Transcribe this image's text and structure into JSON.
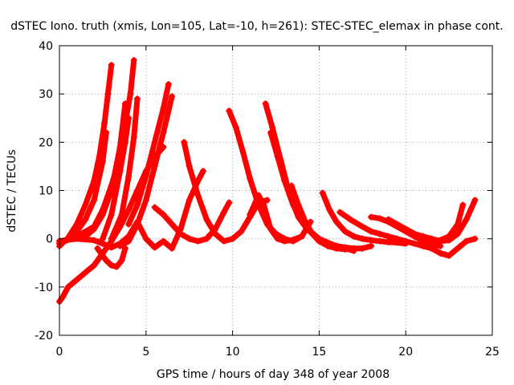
{
  "chart_data": {
    "type": "scatter",
    "title": "dSTEC Iono. truth (xmis, Lon=105, Lat=-10, h=261): STEC-STEC_elemax in phase cont.",
    "xlabel": "GPS time / hours of day 348 of year 2008",
    "ylabel": "dSTEC  / TECUs",
    "xlim": [
      0,
      25
    ],
    "ylim": [
      -20,
      40
    ],
    "xticks": [
      0,
      5,
      10,
      15,
      20,
      25
    ],
    "yticks": [
      -20,
      -10,
      0,
      10,
      20,
      30,
      40
    ],
    "grid": true,
    "marker": "plus",
    "color": "#ff0000",
    "series": [
      {
        "x": [
          0.0,
          0.5,
          1.0,
          1.5,
          2.0,
          2.3,
          2.6,
          2.8,
          3.0
        ],
        "y": [
          -1.5,
          0.2,
          3.0,
          7.0,
          12.0,
          17.0,
          24.0,
          30.0,
          36.0
        ]
      },
      {
        "x": [
          0.0,
          0.5,
          1.0,
          1.5,
          2.0,
          2.5,
          2.7
        ],
        "y": [
          -1.0,
          0.0,
          1.5,
          4.0,
          8.0,
          16.0,
          22.0
        ]
      },
      {
        "x": [
          0.0,
          0.8,
          1.5,
          2.0,
          2.5,
          3.0,
          3.5,
          3.8
        ],
        "y": [
          -0.5,
          0.0,
          0.5,
          2.0,
          5.0,
          10.0,
          19.0,
          28.0
        ]
      },
      {
        "x": [
          0.3,
          1.0,
          2.0,
          2.5,
          3.0,
          3.5,
          3.8,
          4.1,
          4.3
        ],
        "y": [
          -0.5,
          0.5,
          2.5,
          6.0,
          11.0,
          17.0,
          24.0,
          30.0,
          37.0
        ]
      },
      {
        "x": [
          2.5,
          3.0,
          3.5,
          3.8,
          4.0
        ],
        "y": [
          0.0,
          5.0,
          14.0,
          20.0,
          25.0
        ]
      },
      {
        "x": [
          3.5,
          4.0,
          4.5,
          5.0,
          5.5,
          6.0,
          6.5
        ],
        "y": [
          -1.5,
          -0.5,
          3.0,
          8.0,
          15.0,
          22.0,
          29.5
        ]
      },
      {
        "x": [
          4.0,
          4.5,
          5.0,
          5.5,
          6.0,
          6.3
        ],
        "y": [
          3.0,
          7.0,
          13.0,
          20.0,
          27.0,
          32.0
        ]
      },
      {
        "x": [
          3.0,
          3.6,
          4.0,
          4.3,
          4.5
        ],
        "y": [
          0.0,
          5.0,
          13.0,
          21.0,
          29.0
        ]
      },
      {
        "x": [
          0.0,
          0.2,
          0.5,
          1.0,
          1.5,
          2.0,
          2.5,
          3.0,
          3.5,
          4.0,
          4.5,
          5.0,
          5.5,
          6.0
        ],
        "y": [
          -13.0,
          -12.0,
          -10.0,
          -8.5,
          -7.0,
          -5.5,
          -3.0,
          -0.5,
          2.5,
          6.0,
          10.0,
          14.0,
          17.0,
          19.0
        ]
      },
      {
        "x": [
          0.0,
          1.0,
          2.0,
          2.5,
          3.0,
          3.5,
          4.0,
          4.5,
          5.0,
          5.5,
          6.0,
          6.5,
          7.0,
          7.5,
          8.0,
          8.3
        ],
        "y": [
          -0.5,
          0.0,
          -0.3,
          -1.0,
          -1.8,
          -1.0,
          0.5,
          3.5,
          0.0,
          -1.8,
          -0.5,
          -2.0,
          2.0,
          8.0,
          12.0,
          14.0
        ]
      },
      {
        "x": [
          2.2,
          2.7,
          3.0,
          3.3,
          3.6,
          3.8
        ],
        "y": [
          -2.0,
          -4.5,
          -5.5,
          -5.8,
          -4.5,
          -2.0
        ]
      },
      {
        "x": [
          5.5,
          6.0,
          6.5,
          7.0,
          7.5,
          8.0,
          8.5,
          9.0,
          9.5,
          9.8
        ],
        "y": [
          6.5,
          5.0,
          3.0,
          1.0,
          0.0,
          -0.5,
          0.0,
          2.0,
          5.5,
          7.5
        ]
      },
      {
        "x": [
          7.2,
          7.5,
          8.0,
          8.5,
          9.0,
          9.5,
          10.0,
          10.5,
          11.0,
          11.5,
          12.0
        ],
        "y": [
          20.0,
          15.0,
          9.0,
          4.0,
          1.0,
          -0.5,
          0.0,
          1.5,
          4.5,
          7.5,
          8.0
        ]
      },
      {
        "x": [
          9.8,
          10.2,
          10.6,
          11.0,
          11.5,
          12.0,
          12.5,
          13.0,
          13.5,
          14.0,
          14.5
        ],
        "y": [
          26.5,
          23.0,
          18.0,
          12.5,
          7.0,
          3.0,
          1.0,
          0.0,
          -0.5,
          0.5,
          3.5
        ]
      },
      {
        "x": [
          11.0,
          11.5,
          11.8,
          12.2,
          12.6,
          13.0,
          13.5,
          14.0
        ],
        "y": [
          5.0,
          9.0,
          7.0,
          2.0,
          0.0,
          -0.5,
          -0.2,
          0.5
        ]
      },
      {
        "x": [
          11.9,
          12.3,
          12.8,
          13.3,
          13.8,
          14.3,
          14.8,
          15.3,
          16.0,
          16.5,
          17.0
        ],
        "y": [
          28.0,
          23.0,
          16.0,
          9.0,
          4.5,
          2.0,
          0.5,
          -1.0,
          -1.5,
          -2.0,
          -2.5
        ]
      },
      {
        "x": [
          12.2,
          12.6,
          13.0,
          13.5,
          14.0,
          14.5,
          15.0,
          15.5,
          16.0,
          16.5,
          17.0,
          17.5,
          18.0
        ],
        "y": [
          22.0,
          17.0,
          12.0,
          7.0,
          3.5,
          1.5,
          0.0,
          -0.8,
          -1.5,
          -1.8,
          -2.0,
          -2.0,
          -1.5
        ]
      },
      {
        "x": [
          13.4,
          13.8,
          14.2,
          14.6,
          15.0,
          15.5,
          16.0,
          16.5,
          17.0
        ],
        "y": [
          11.0,
          7.0,
          3.5,
          1.0,
          -0.5,
          -1.5,
          -2.0,
          -2.2,
          -2.0
        ]
      },
      {
        "x": [
          15.2,
          15.6,
          16.0,
          16.5,
          17.0,
          17.5,
          18.0,
          18.5,
          19.0,
          19.5,
          20.0
        ],
        "y": [
          9.5,
          6.0,
          3.5,
          1.5,
          0.5,
          0.0,
          -0.3,
          -0.5,
          -0.7,
          -0.8,
          -1.0
        ]
      },
      {
        "x": [
          16.2,
          16.8,
          17.5,
          18.0,
          18.5,
          19.0,
          19.5,
          20.0,
          20.5,
          21.0,
          21.5
        ],
        "y": [
          5.5,
          4.0,
          2.5,
          1.5,
          1.0,
          0.5,
          0.0,
          -0.5,
          -1.0,
          -1.5,
          -2.0
        ]
      },
      {
        "x": [
          18.0,
          18.5,
          19.0,
          19.5,
          20.0,
          20.5,
          21.0,
          21.5,
          22.0
        ],
        "y": [
          4.5,
          4.2,
          3.5,
          2.5,
          1.5,
          0.5,
          -0.5,
          -1.0,
          -1.5
        ]
      },
      {
        "x": [
          19.0,
          19.5,
          20.0,
          20.5,
          21.0,
          21.5,
          22.0,
          22.5,
          23.0,
          23.3
        ],
        "y": [
          4.0,
          3.0,
          2.0,
          1.0,
          0.0,
          -0.3,
          -0.3,
          0.5,
          3.0,
          7.0
        ]
      },
      {
        "x": [
          20.0,
          20.5,
          21.0,
          21.5,
          22.0,
          22.5,
          23.0,
          23.5,
          24.0
        ],
        "y": [
          2.0,
          1.0,
          0.5,
          0.0,
          -0.5,
          -0.3,
          1.0,
          4.0,
          8.0
        ]
      },
      {
        "x": [
          22.0,
          22.5,
          23.0,
          23.5,
          24.0
        ],
        "y": [
          -3.0,
          -3.5,
          -2.0,
          -0.5,
          0.0
        ]
      },
      {
        "x": [
          21.0,
          21.5,
          22.0,
          22.3
        ],
        "y": [
          -0.5,
          -2.0,
          -3.0,
          -3.3
        ]
      }
    ]
  }
}
